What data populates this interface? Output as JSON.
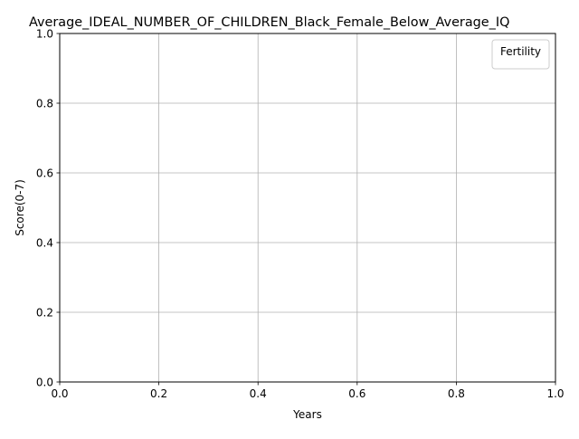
{
  "chart_data": {
    "type": "line",
    "title": "Average_IDEAL_NUMBER_OF_CHILDREN_Black_Female_Below_Average_IQ",
    "xlabel": "Years",
    "ylabel": "Score(0-7)",
    "xlim": [
      0.0,
      1.0
    ],
    "ylim": [
      0.0,
      1.0
    ],
    "xticks": [
      "0.0",
      "0.2",
      "0.4",
      "0.6",
      "0.8",
      "1.0"
    ],
    "yticks": [
      "0.0",
      "0.2",
      "0.4",
      "0.6",
      "0.8",
      "1.0"
    ],
    "grid": true,
    "legend": {
      "title": "Fertility",
      "placement": "top-right",
      "entries": []
    },
    "series": []
  }
}
